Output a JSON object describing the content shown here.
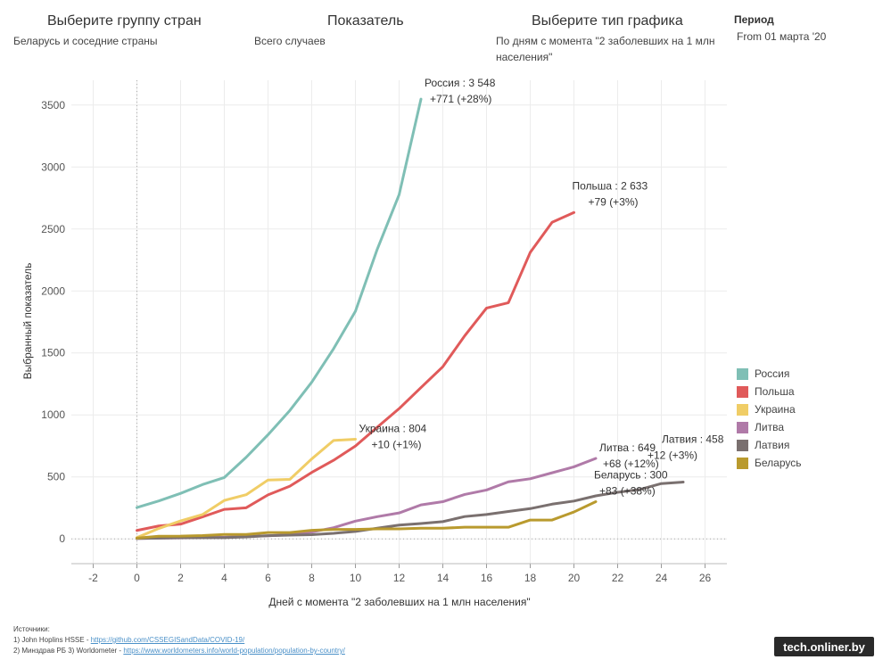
{
  "controls": {
    "group": {
      "title": "Выберите группу стран",
      "value": "Беларусь и соседние страны"
    },
    "indicator": {
      "title": "Показатель",
      "value": "Всего случаев"
    },
    "chart_type": {
      "title": "Выберите тип графика",
      "value_line1": "По дням с момента \"2 заболевших на 1 млн",
      "value_line2": "населения\""
    },
    "period": {
      "title": "Период",
      "value": "From 01 марта '20"
    }
  },
  "sources": {
    "header": "Источники:",
    "line1_prefix": "1) John Hoplins HSSE - ",
    "line1_link": "https://github.com/CSSEGISandData/COVID-19/",
    "line2_prefix": "2) Минздрав РБ   3) Worldometer - ",
    "line2_link": "https://www.worldometers.info/world-population/population-by-country/"
  },
  "watermark": "tech.onliner.by",
  "chart_data": {
    "type": "line",
    "xlabel": "Дней с момента \"2 заболевших на 1 млн населения\"",
    "ylabel": "Выбранный показатель",
    "xlim": [
      -3,
      27
    ],
    "ylim": [
      -200,
      3700
    ],
    "xticks": [
      -2,
      0,
      2,
      4,
      6,
      8,
      10,
      12,
      14,
      16,
      18,
      20,
      22,
      24,
      26
    ],
    "yticks": [
      0,
      500,
      1000,
      1500,
      2000,
      2500,
      3000,
      3500
    ],
    "grid": true,
    "legend_position": "right",
    "series": [
      {
        "name": "Россия",
        "color": "#7fbfb5",
        "x": [
          0,
          1,
          2,
          3,
          4,
          5,
          6,
          7,
          8,
          9,
          10,
          11,
          12,
          13
        ],
        "y": [
          253,
          306,
          367,
          438,
          495,
          658,
          840,
          1036,
          1264,
          1534,
          1836,
          2337,
          2777,
          3548
        ],
        "label": [
          "Россия : 3 548",
          "+771 (+28%)"
        ]
      },
      {
        "name": "Польша",
        "color": "#e05a5a",
        "x": [
          0,
          1,
          2,
          3,
          4,
          5,
          6,
          7,
          8,
          9,
          10,
          11,
          12,
          13,
          14,
          15,
          16,
          17,
          18,
          19,
          20
        ],
        "y": [
          68,
          104,
          119,
          177,
          238,
          251,
          355,
          425,
          536,
          634,
          749,
          901,
          1051,
          1221,
          1389,
          1638,
          1862,
          1905,
          2311,
          2554,
          2633
        ],
        "label": [
          "Польша : 2 633",
          "+79 (+3%)"
        ]
      },
      {
        "name": "Украина",
        "color": "#f0cd66",
        "x": [
          0,
          1,
          2,
          3,
          4,
          5,
          6,
          7,
          8,
          9,
          10
        ],
        "y": [
          10,
          84,
          145,
          196,
          310,
          356,
          475,
          480,
          645,
          794,
          804
        ],
        "label": [
          "Украина : 804",
          "+10 (+1%)"
        ]
      },
      {
        "name": "Литва",
        "color": "#b07aa8",
        "x": [
          0,
          1,
          2,
          3,
          4,
          5,
          6,
          7,
          8,
          9,
          10,
          11,
          12,
          13,
          14,
          15,
          16,
          17,
          18,
          19,
          20,
          21
        ],
        "y": [
          3,
          6,
          8,
          11,
          13,
          20,
          25,
          34,
          55,
          90,
          143,
          179,
          209,
          274,
          300,
          358,
          394,
          460,
          485,
          533,
          581,
          649
        ],
        "label": [
          "Литва : 649",
          "+68 (+12%)"
        ]
      },
      {
        "name": "Латвия",
        "color": "#7a706f",
        "x": [
          0,
          1,
          2,
          3,
          4,
          5,
          6,
          7,
          8,
          9,
          10,
          11,
          12,
          13,
          14,
          15,
          16,
          17,
          18,
          19,
          20,
          21,
          22,
          23,
          24,
          25
        ],
        "y": [
          3,
          6,
          10,
          10,
          10,
          16,
          26,
          30,
          34,
          45,
          60,
          86,
          111,
          124,
          139,
          180,
          197,
          221,
          244,
          280,
          305,
          347,
          376,
          398,
          446,
          458
        ],
        "label": [
          "Латвия : 458",
          "+12 (+3%)"
        ]
      },
      {
        "name": "Беларусь",
        "color": "#b99a2e",
        "x": [
          0,
          1,
          2,
          3,
          4,
          5,
          6,
          7,
          8,
          9,
          10,
          11,
          12,
          13,
          14,
          15,
          16,
          17,
          18,
          19,
          20,
          21
        ],
        "y": [
          6,
          21,
          22,
          27,
          36,
          36,
          51,
          51,
          69,
          76,
          76,
          81,
          81,
          86,
          86,
          94,
          94,
          94,
          152,
          152,
          217,
          300
        ],
        "label": [
          "Беларусь : 300",
          "+83 (+38%)"
        ]
      }
    ]
  }
}
